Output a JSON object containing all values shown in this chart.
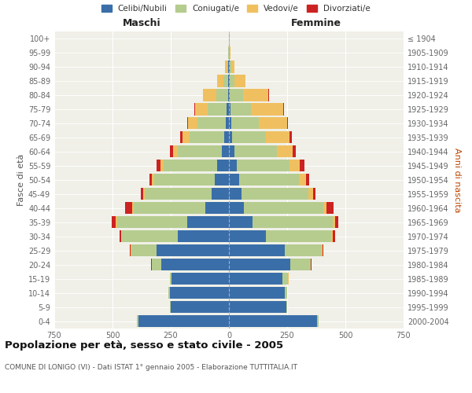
{
  "age_groups": [
    "0-4",
    "5-9",
    "10-14",
    "15-19",
    "20-24",
    "25-29",
    "30-34",
    "35-39",
    "40-44",
    "45-49",
    "50-54",
    "55-59",
    "60-64",
    "65-69",
    "70-74",
    "75-79",
    "80-84",
    "85-89",
    "90-94",
    "95-99",
    "100+"
  ],
  "birth_years": [
    "2000-2004",
    "1995-1999",
    "1990-1994",
    "1985-1989",
    "1980-1984",
    "1975-1979",
    "1970-1974",
    "1965-1969",
    "1960-1964",
    "1955-1959",
    "1950-1954",
    "1945-1949",
    "1940-1944",
    "1935-1939",
    "1930-1934",
    "1925-1929",
    "1920-1924",
    "1915-1919",
    "1910-1914",
    "1905-1909",
    "≤ 1904"
  ],
  "colors": {
    "celibe": "#3a6ea8",
    "coniugato": "#b5cc8e",
    "vedovo": "#f0c060",
    "divorziato": "#cc2222"
  },
  "maschi": {
    "celibe": [
      390,
      250,
      255,
      245,
      290,
      310,
      220,
      180,
      100,
      75,
      60,
      50,
      30,
      20,
      15,
      10,
      5,
      5,
      2,
      1,
      0
    ],
    "coniugato": [
      5,
      5,
      5,
      10,
      40,
      110,
      240,
      300,
      310,
      285,
      260,
      230,
      190,
      150,
      120,
      80,
      50,
      20,
      5,
      1,
      0
    ],
    "vedovo": [
      0,
      0,
      0,
      0,
      1,
      2,
      3,
      5,
      5,
      8,
      10,
      15,
      20,
      30,
      40,
      55,
      55,
      25,
      10,
      2,
      0
    ],
    "divorziato": [
      0,
      0,
      0,
      0,
      2,
      3,
      5,
      20,
      30,
      10,
      12,
      15,
      15,
      10,
      5,
      2,
      1,
      0,
      0,
      0,
      0
    ]
  },
  "femmine": {
    "nubile": [
      380,
      245,
      240,
      230,
      265,
      240,
      160,
      100,
      65,
      55,
      45,
      35,
      22,
      15,
      10,
      8,
      5,
      5,
      2,
      1,
      0
    ],
    "coniugata": [
      5,
      5,
      10,
      25,
      85,
      160,
      280,
      345,
      340,
      285,
      255,
      225,
      185,
      145,
      120,
      85,
      55,
      20,
      8,
      2,
      1
    ],
    "vedova": [
      0,
      0,
      0,
      1,
      2,
      3,
      5,
      10,
      15,
      20,
      30,
      45,
      65,
      100,
      120,
      140,
      110,
      45,
      15,
      3,
      1
    ],
    "divorziata": [
      0,
      0,
      0,
      0,
      2,
      3,
      10,
      15,
      30,
      12,
      15,
      18,
      15,
      10,
      5,
      3,
      2,
      1,
      0,
      0,
      0
    ]
  },
  "xlim": 750,
  "title": "Popolazione per età, sesso e stato civile - 2005",
  "subtitle": "COMUNE DI LONIGO (VI) - Dati ISTAT 1° gennaio 2005 - Elaborazione TUTTITALIA.IT",
  "xlabel_maschi": "Maschi",
  "xlabel_femmine": "Femmine",
  "ylabel_left": "Fasce di età",
  "ylabel_right": "Anni di nascita",
  "bg_color": "#f0f0e8",
  "bar_height": 0.85
}
